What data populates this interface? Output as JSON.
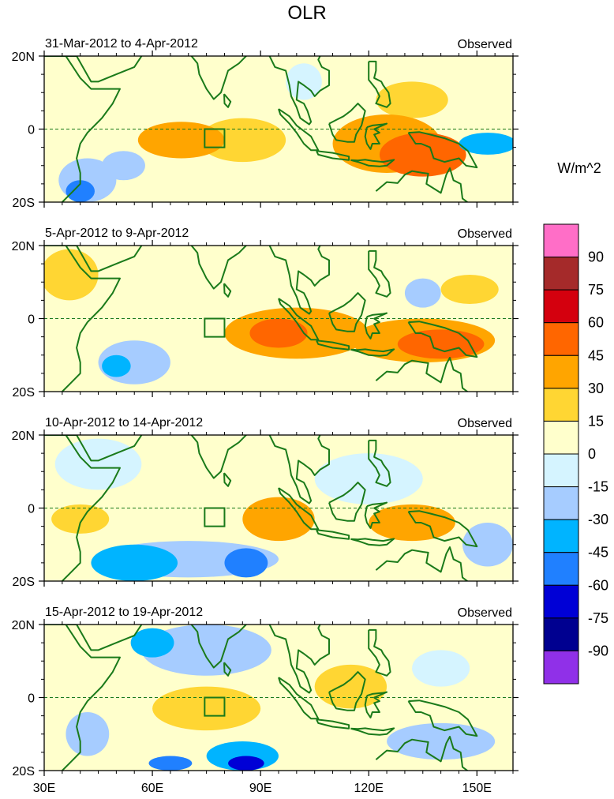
{
  "chart_data": {
    "type": "heatmap",
    "title": "OLR",
    "colorbar": {
      "unit_label": "W/m^2",
      "tick_labels": [
        "90",
        "75",
        "60",
        "45",
        "30",
        "15",
        "0",
        "-15",
        "-30",
        "-45",
        "-60",
        "-75",
        "-90"
      ],
      "levels_top_to_bottom": [
        {
          "color": "#ff6ec7"
        },
        {
          "color": "#a52a2a"
        },
        {
          "color": "#d4000e"
        },
        {
          "color": "#ff6600"
        },
        {
          "color": "#ffa500"
        },
        {
          "color": "#ffd633"
        },
        {
          "color": "#ffffcc"
        },
        {
          "color": "#d5f4ff"
        },
        {
          "color": "#a6ccff"
        },
        {
          "color": "#00b4ff"
        },
        {
          "color": "#2080ff"
        },
        {
          "color": "#0000d6"
        },
        {
          "color": "#000090"
        },
        {
          "color": "#9030e8"
        }
      ]
    },
    "x_ticks": [
      "30E",
      "60E",
      "90E",
      "120E",
      "150E"
    ],
    "y_ticks": [
      "20N",
      "0",
      "20S"
    ],
    "lon_range": [
      30,
      160
    ],
    "lat_range": [
      -20,
      20
    ],
    "panels": [
      {
        "period": "31-Mar-2012 to 4-Apr-2012",
        "label": "Observed",
        "anomalies": [
          {
            "lon": 68,
            "lat": -3,
            "rx": 12,
            "ry": 5,
            "value": 30
          },
          {
            "lon": 85,
            "lat": -3,
            "rx": 12,
            "ry": 6,
            "value": 15
          },
          {
            "lon": 135,
            "lat": -7,
            "rx": 12,
            "ry": 6,
            "value": 45
          },
          {
            "lon": 125,
            "lat": -4,
            "rx": 15,
            "ry": 8,
            "value": 30
          },
          {
            "lon": 132,
            "lat": 8,
            "rx": 10,
            "ry": 5,
            "value": 15
          },
          {
            "lon": 102,
            "lat": 13,
            "rx": 5,
            "ry": 5,
            "value": -15
          },
          {
            "lon": 42,
            "lat": -14,
            "rx": 8,
            "ry": 6,
            "value": -30
          },
          {
            "lon": 40,
            "lat": -17,
            "rx": 4,
            "ry": 3,
            "value": -60
          },
          {
            "lon": 52,
            "lat": -10,
            "rx": 6,
            "ry": 4,
            "value": -30
          },
          {
            "lon": 153,
            "lat": -4,
            "rx": 8,
            "ry": 3,
            "value": -45
          }
        ]
      },
      {
        "period": "5-Apr-2012 to 9-Apr-2012",
        "label": "Observed",
        "anomalies": [
          {
            "lon": 100,
            "lat": -4,
            "rx": 20,
            "ry": 7,
            "value": 30
          },
          {
            "lon": 95,
            "lat": -4,
            "rx": 8,
            "ry": 4,
            "value": 45
          },
          {
            "lon": 135,
            "lat": -6,
            "rx": 20,
            "ry": 6,
            "value": 30
          },
          {
            "lon": 140,
            "lat": -7,
            "rx": 12,
            "ry": 4,
            "value": 45
          },
          {
            "lon": 55,
            "lat": -12,
            "rx": 10,
            "ry": 6,
            "value": -30
          },
          {
            "lon": 50,
            "lat": -13,
            "rx": 4,
            "ry": 3,
            "value": -45
          },
          {
            "lon": 135,
            "lat": 7,
            "rx": 5,
            "ry": 4,
            "value": -30
          },
          {
            "lon": 37,
            "lat": 12,
            "rx": 8,
            "ry": 7,
            "value": 15
          },
          {
            "lon": 148,
            "lat": 8,
            "rx": 8,
            "ry": 4,
            "value": 15
          }
        ]
      },
      {
        "period": "10-Apr-2012 to 14-Apr-2012",
        "label": "Observed",
        "anomalies": [
          {
            "lon": 70,
            "lat": -14,
            "rx": 25,
            "ry": 5,
            "value": -30
          },
          {
            "lon": 86,
            "lat": -15,
            "rx": 6,
            "ry": 4,
            "value": -60
          },
          {
            "lon": 55,
            "lat": -15,
            "rx": 12,
            "ry": 5,
            "value": -45
          },
          {
            "lon": 45,
            "lat": 12,
            "rx": 12,
            "ry": 7,
            "value": -15
          },
          {
            "lon": 120,
            "lat": 8,
            "rx": 15,
            "ry": 7,
            "value": -15
          },
          {
            "lon": 95,
            "lat": -3,
            "rx": 10,
            "ry": 6,
            "value": 30
          },
          {
            "lon": 132,
            "lat": -4,
            "rx": 12,
            "ry": 5,
            "value": 30
          },
          {
            "lon": 153,
            "lat": -10,
            "rx": 7,
            "ry": 6,
            "value": -30
          },
          {
            "lon": 40,
            "lat": -3,
            "rx": 8,
            "ry": 4,
            "value": 15
          }
        ]
      },
      {
        "period": "15-Apr-2012 to 19-Apr-2012",
        "label": "Observed",
        "anomalies": [
          {
            "lon": 75,
            "lat": 13,
            "rx": 18,
            "ry": 7,
            "value": -30
          },
          {
            "lon": 60,
            "lat": 15,
            "rx": 6,
            "ry": 4,
            "value": -45
          },
          {
            "lon": 85,
            "lat": -16,
            "rx": 10,
            "ry": 4,
            "value": -45
          },
          {
            "lon": 86,
            "lat": -18,
            "rx": 5,
            "ry": 2,
            "value": -75
          },
          {
            "lon": 65,
            "lat": -18,
            "rx": 6,
            "ry": 2,
            "value": -60
          },
          {
            "lon": 140,
            "lat": -12,
            "rx": 15,
            "ry": 5,
            "value": -30
          },
          {
            "lon": 42,
            "lat": -10,
            "rx": 6,
            "ry": 6,
            "value": -30
          },
          {
            "lon": 75,
            "lat": -3,
            "rx": 15,
            "ry": 6,
            "value": 15
          },
          {
            "lon": 115,
            "lat": 3,
            "rx": 10,
            "ry": 6,
            "value": 15
          },
          {
            "lon": 140,
            "lat": 8,
            "rx": 8,
            "ry": 5,
            "value": -15
          }
        ]
      }
    ]
  }
}
